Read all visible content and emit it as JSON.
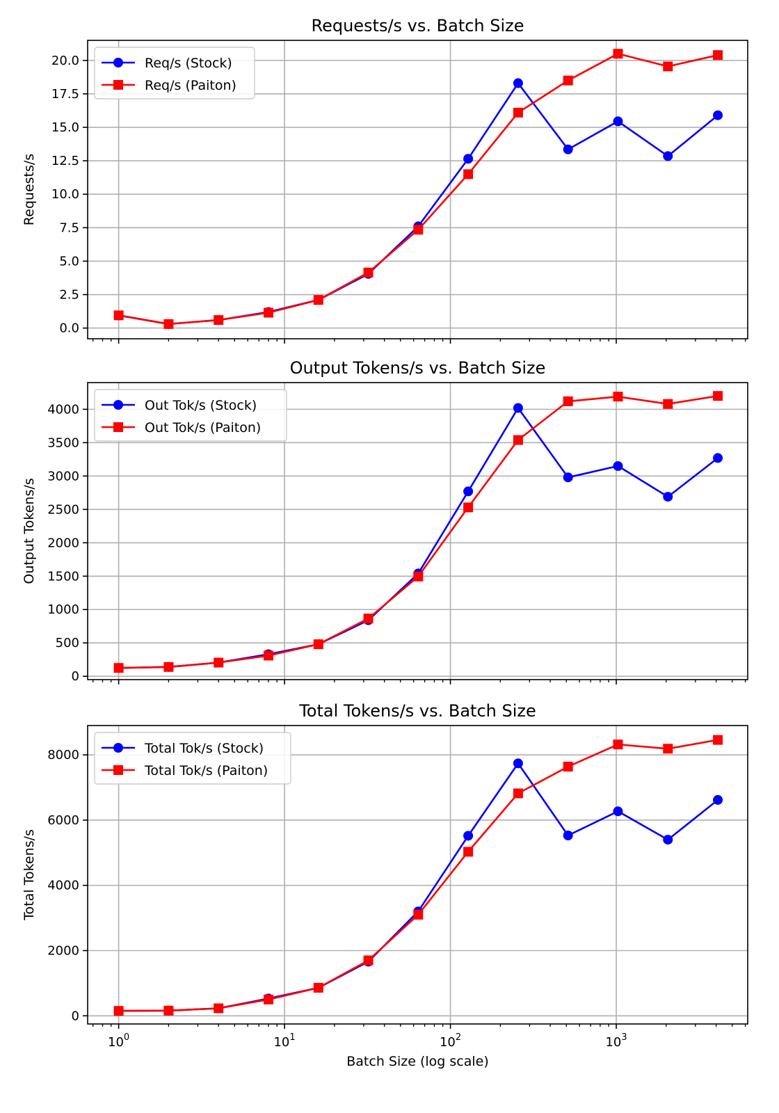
{
  "chart_data": [
    {
      "type": "line",
      "title": "Requests/s vs. Batch Size",
      "ylabel": "Requests/s",
      "xlabel": "",
      "xscale": "log",
      "xlim": [
        0.65,
        6200
      ],
      "ylim": [
        -0.8,
        21.5
      ],
      "grid": true,
      "legend": "top-left",
      "x": [
        1,
        2,
        4,
        8,
        16,
        32,
        64,
        128,
        256,
        512,
        1024,
        2048,
        4096
      ],
      "yticks": [
        0.0,
        2.5,
        5.0,
        7.5,
        10.0,
        12.5,
        15.0,
        17.5,
        20.0
      ],
      "ytick_labels": [
        "0.0",
        "2.5",
        "5.0",
        "7.5",
        "10.0",
        "12.5",
        "15.0",
        "17.5",
        "20.0"
      ],
      "series": [
        {
          "name": "Req/s (Stock)",
          "color": "#0000ff",
          "marker": "circle",
          "values": [
            0.95,
            0.3,
            0.6,
            1.2,
            2.1,
            4.05,
            7.6,
            12.65,
            18.3,
            13.35,
            15.45,
            12.85,
            15.9
          ]
        },
        {
          "name": "Req/s (Paiton)",
          "color": "#ff0000",
          "marker": "square",
          "values": [
            0.95,
            0.3,
            0.6,
            1.15,
            2.1,
            4.15,
            7.35,
            11.5,
            16.1,
            18.5,
            20.5,
            19.55,
            20.4
          ]
        }
      ]
    },
    {
      "type": "line",
      "title": "Output Tokens/s vs. Batch Size",
      "ylabel": "Output Tokens/s",
      "xlabel": "",
      "xscale": "log",
      "xlim": [
        0.65,
        6200
      ],
      "ylim": [
        -50,
        4400
      ],
      "grid": true,
      "legend": "top-left",
      "x": [
        1,
        2,
        4,
        8,
        16,
        32,
        64,
        128,
        256,
        512,
        1024,
        2048,
        4096
      ],
      "yticks": [
        0,
        500,
        1000,
        1500,
        2000,
        2500,
        3000,
        3500,
        4000
      ],
      "ytick_labels": [
        "0",
        "500",
        "1000",
        "1500",
        "2000",
        "2500",
        "3000",
        "3500",
        "4000"
      ],
      "series": [
        {
          "name": "Out Tok/s (Stock)",
          "color": "#0000ff",
          "marker": "circle",
          "values": [
            125,
            140,
            205,
            330,
            480,
            840,
            1540,
            2770,
            4020,
            2980,
            3150,
            2690,
            3270
          ]
        },
        {
          "name": "Out Tok/s (Paiton)",
          "color": "#ff0000",
          "marker": "square",
          "values": [
            125,
            140,
            205,
            310,
            480,
            865,
            1495,
            2530,
            3540,
            4120,
            4190,
            4080,
            4200
          ]
        }
      ]
    },
    {
      "type": "line",
      "title": "Total Tokens/s vs. Batch Size",
      "ylabel": "Total Tokens/s",
      "xlabel": "Batch Size (log scale)",
      "xscale": "log",
      "xlim": [
        0.65,
        6200
      ],
      "ylim": [
        -250,
        8900
      ],
      "grid": true,
      "legend": "top-left",
      "x": [
        1,
        2,
        4,
        8,
        16,
        32,
        64,
        128,
        256,
        512,
        1024,
        2048,
        4096
      ],
      "yticks": [
        0,
        2000,
        4000,
        6000,
        8000
      ],
      "ytick_labels": [
        "0",
        "2000",
        "4000",
        "6000",
        "8000"
      ],
      "xticks": [
        1,
        10,
        100,
        1000
      ],
      "xtick_bases": [
        "10",
        "10",
        "10",
        "10"
      ],
      "xtick_exps": [
        "0",
        "1",
        "2",
        "3"
      ],
      "series": [
        {
          "name": "Total Tok/s (Stock)",
          "color": "#0000ff",
          "marker": "circle",
          "values": [
            150,
            160,
            230,
            530,
            860,
            1660,
            3200,
            5520,
            7740,
            5530,
            6270,
            5400,
            6620
          ]
        },
        {
          "name": "Total Tok/s (Paiton)",
          "color": "#ff0000",
          "marker": "square",
          "values": [
            150,
            160,
            230,
            500,
            860,
            1700,
            3100,
            5030,
            6820,
            7640,
            8320,
            8190,
            8460
          ]
        }
      ]
    }
  ]
}
